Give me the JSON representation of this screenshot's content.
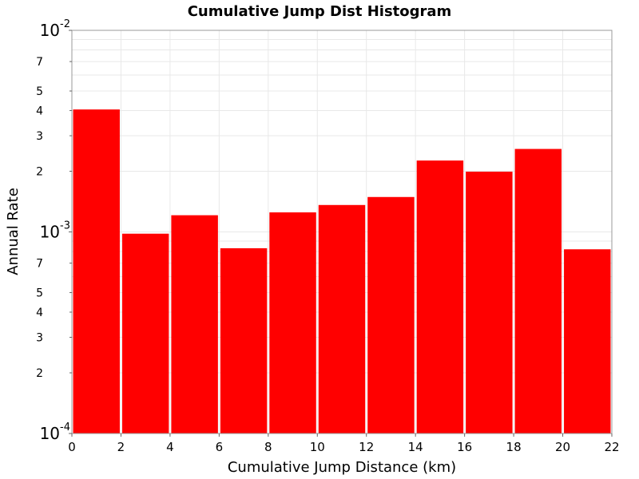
{
  "chart_data": {
    "type": "bar",
    "title": "Cumulative Jump Dist Histogram",
    "xlabel": "Cumulative Jump Distance (km)",
    "ylabel": "Annual Rate",
    "xlim": [
      0,
      22
    ],
    "ylim": [
      0.0001,
      0.01
    ],
    "yscale": "log",
    "grid": true,
    "bar_color": "#ff0000",
    "x_ticks": [
      "0",
      "2",
      "4",
      "6",
      "8",
      "10",
      "12",
      "14",
      "16",
      "18",
      "20",
      "22"
    ],
    "y_major_ticks": [
      {
        "value": 0.0001,
        "base": "10",
        "exp": "-4"
      },
      {
        "value": 0.001,
        "base": "10",
        "exp": "-3"
      },
      {
        "value": 0.01,
        "base": "10",
        "exp": "-2"
      }
    ],
    "y_minor_ticks": [
      {
        "value": 0.0002,
        "label": "2"
      },
      {
        "value": 0.0003,
        "label": "3"
      },
      {
        "value": 0.0004,
        "label": "4"
      },
      {
        "value": 0.0005,
        "label": "5"
      },
      {
        "value": 0.0007,
        "label": "7"
      },
      {
        "value": 0.002,
        "label": "2"
      },
      {
        "value": 0.003,
        "label": "3"
      },
      {
        "value": 0.004,
        "label": "4"
      },
      {
        "value": 0.005,
        "label": "5"
      },
      {
        "value": 0.007,
        "label": "7"
      }
    ],
    "bars": [
      {
        "x0": 0,
        "x1": 2,
        "value": 0.00405
      },
      {
        "x0": 2,
        "x1": 4,
        "value": 0.00098
      },
      {
        "x0": 4,
        "x1": 6,
        "value": 0.00121
      },
      {
        "x0": 6,
        "x1": 8,
        "value": 0.00083
      },
      {
        "x0": 8,
        "x1": 10,
        "value": 0.00125
      },
      {
        "x0": 10,
        "x1": 12,
        "value": 0.00136
      },
      {
        "x0": 12,
        "x1": 14,
        "value": 0.00149
      },
      {
        "x0": 14,
        "x1": 16,
        "value": 0.00226
      },
      {
        "x0": 16,
        "x1": 18,
        "value": 0.00199
      },
      {
        "x0": 18,
        "x1": 20,
        "value": 0.00258
      },
      {
        "x0": 20,
        "x1": 22,
        "value": 0.00082
      }
    ]
  }
}
